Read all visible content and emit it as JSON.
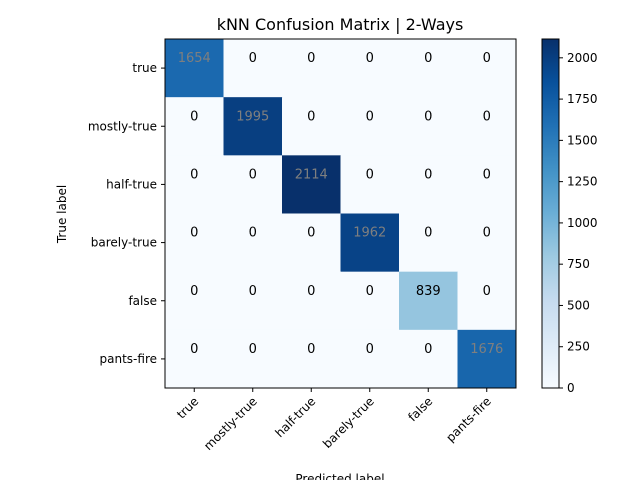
{
  "chart_data": {
    "type": "heatmap",
    "title": "kNN Confusion Matrix | 2-Ways",
    "xlabel": "Predicted label",
    "ylabel": "True label",
    "x_categories": [
      "true",
      "mostly-true",
      "half-true",
      "barely-true",
      "false",
      "pants-fire"
    ],
    "y_categories": [
      "true",
      "mostly-true",
      "half-true",
      "barely-true",
      "false",
      "pants-fire"
    ],
    "matrix": [
      [
        1654,
        0,
        0,
        0,
        0,
        0
      ],
      [
        0,
        1995,
        0,
        0,
        0,
        0
      ],
      [
        0,
        0,
        2114,
        0,
        0,
        0
      ],
      [
        0,
        0,
        0,
        1962,
        0,
        0
      ],
      [
        0,
        0,
        0,
        0,
        839,
        0
      ],
      [
        0,
        0,
        0,
        0,
        0,
        1676
      ]
    ],
    "colormap": "Blues",
    "color_range": [
      0,
      2114
    ],
    "colorbar_ticks": [
      0,
      250,
      500,
      750,
      1000,
      1250,
      1500,
      1750,
      2000
    ],
    "colors": {
      "low": "#f7fbff",
      "high": "#08306b",
      "dark_cell_text": "#7f7f7f",
      "light_cell_text": "#000000"
    }
  }
}
